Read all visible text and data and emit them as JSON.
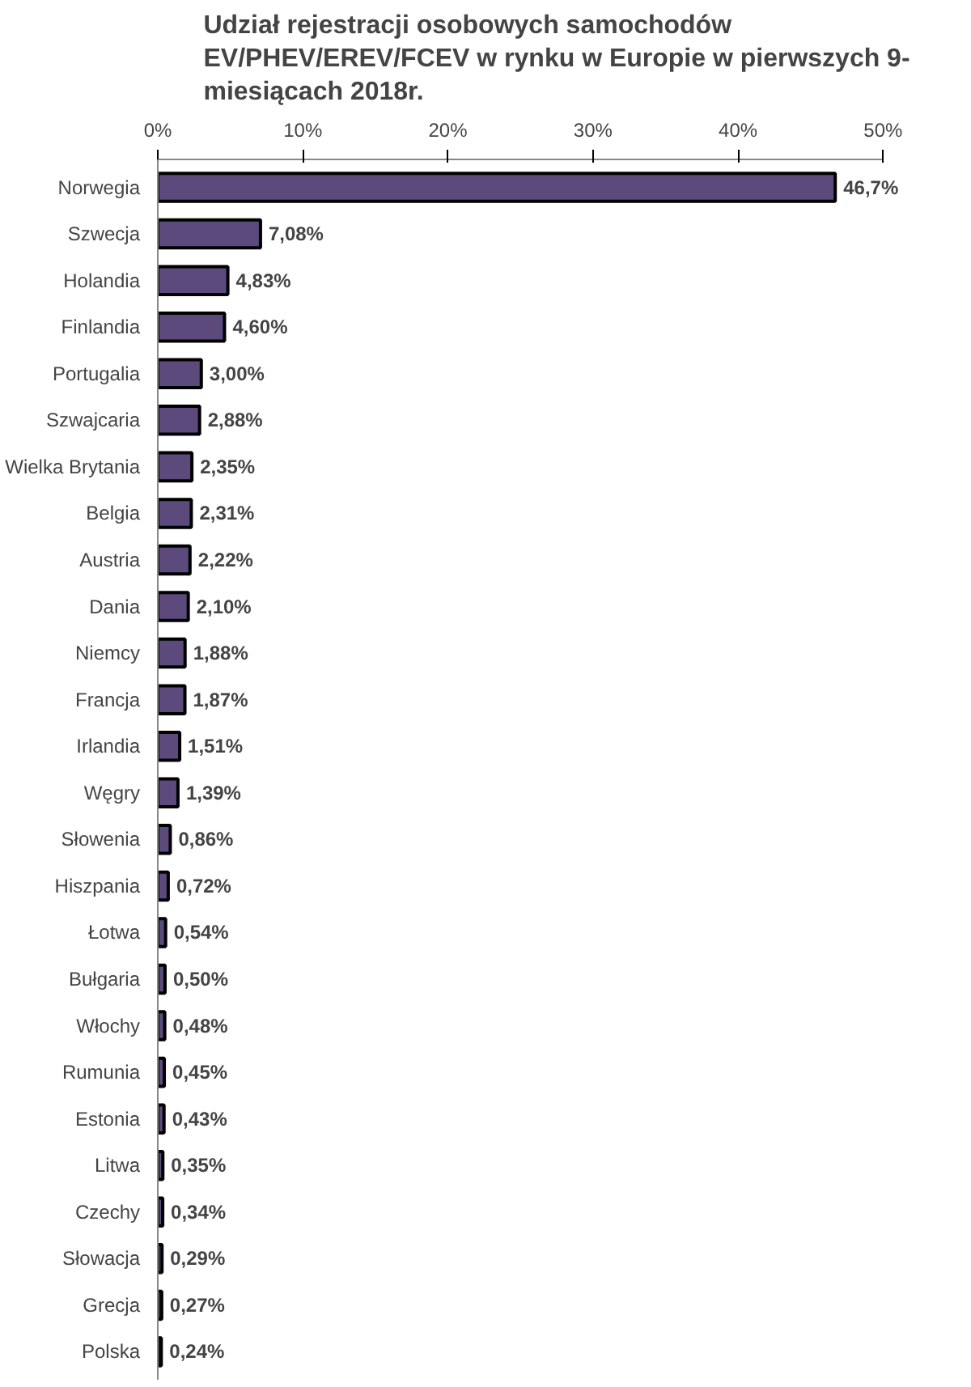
{
  "chart_data": {
    "type": "bar",
    "orientation": "horizontal",
    "title": "Udział rejestracji osobowych samochodów\nEV/PHEV/EREV/FCEV w rynku w Europie w pierwszych 9-\nmiesiącach 2018r.",
    "categories": [
      "Norwegia",
      "Szwecja",
      "Holandia",
      "Finlandia",
      "Portugalia",
      "Szwajcaria",
      "Wielka Brytania",
      "Belgia",
      "Austria",
      "Dania",
      "Niemcy",
      "Francja",
      "Irlandia",
      "Węgry",
      "Słowenia",
      "Hiszpania",
      "Łotwa",
      "Bułgaria",
      "Włochy",
      "Rumunia",
      "Estonia",
      "Litwa",
      "Czechy",
      "Słowacja",
      "Grecja",
      "Polska"
    ],
    "values": [
      46.7,
      7.08,
      4.83,
      4.6,
      3.0,
      2.88,
      2.35,
      2.31,
      2.22,
      2.1,
      1.88,
      1.87,
      1.51,
      1.39,
      0.86,
      0.72,
      0.54,
      0.5,
      0.48,
      0.45,
      0.43,
      0.35,
      0.34,
      0.29,
      0.27,
      0.24
    ],
    "value_labels": [
      "46,7%",
      "7,08%",
      "4,83%",
      "4,60%",
      "3,00%",
      "2,88%",
      "2,35%",
      "2,31%",
      "2,22%",
      "2,10%",
      "1,88%",
      "1,87%",
      "1,51%",
      "1,39%",
      "0,86%",
      "0,72%",
      "0,54%",
      "0,50%",
      "0,48%",
      "0,45%",
      "0,43%",
      "0,35%",
      "0,34%",
      "0,29%",
      "0,27%",
      "0,24%"
    ],
    "color": "#5c4a7d",
    "xlim": [
      0,
      50
    ],
    "xticks": [
      {
        "value": 0,
        "label": "0%"
      },
      {
        "value": 10,
        "label": "10%"
      },
      {
        "value": 20,
        "label": "20%"
      },
      {
        "value": 30,
        "label": "30%"
      },
      {
        "value": 40,
        "label": "40%"
      },
      {
        "value": 50,
        "label": "50%"
      }
    ],
    "grid": false
  }
}
